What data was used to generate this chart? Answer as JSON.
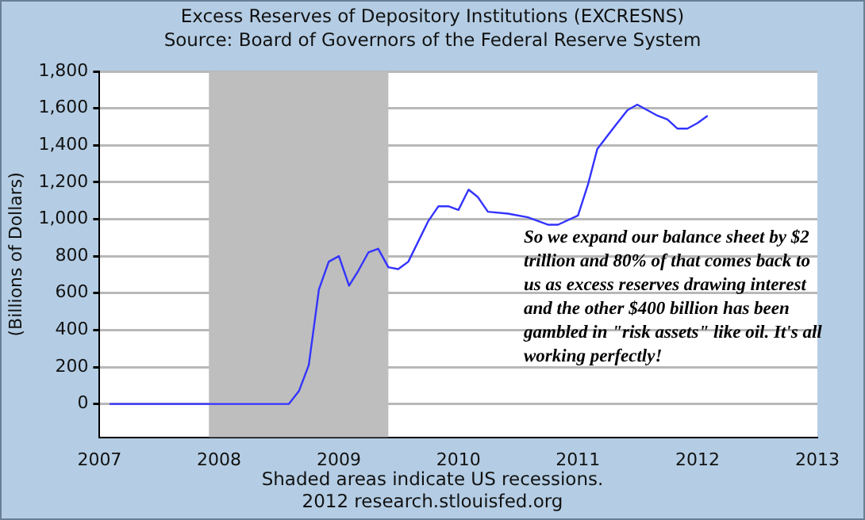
{
  "chart_data": {
    "type": "line",
    "title": "Excess Reserves of Depository Institutions (EXCRESNS)",
    "subtitle": "Source: Board of Governors of the Federal Reserve System",
    "ylabel": "(Billions of Dollars)",
    "annotations": [
      "So we expand our balance sheet by $2 trillion and 80% of that comes back to us as excess reserves drawing interest and the other $400 billion has been gambled in \"risk assets\" like oil. It's all working perfectly!",
      "Shaded areas indicate US recessions.",
      "2012 research.stlouisfed.org"
    ],
    "x": [
      "2007-02",
      "2007-06",
      "2007-10",
      "2008-02",
      "2008-06",
      "2008-08",
      "2008-09",
      "2008-10",
      "2008-11",
      "2008-12",
      "2009-01",
      "2009-02",
      "2009-03",
      "2009-04",
      "2009-05",
      "2009-06",
      "2009-07",
      "2009-08",
      "2009-10",
      "2009-11",
      "2009-12",
      "2010-01",
      "2010-02",
      "2010-03",
      "2010-04",
      "2010-06",
      "2010-08",
      "2010-10",
      "2010-11",
      "2011-01",
      "2011-02",
      "2011-03",
      "2011-05",
      "2011-06",
      "2011-07",
      "2011-09",
      "2011-10",
      "2011-11",
      "2011-12",
      "2012-01",
      "2012-02"
    ],
    "series": [
      {
        "color": "#3333ff",
        "values": [
          0,
          0,
          0,
          0,
          0,
          0,
          70,
          210,
          620,
          770,
          800,
          640,
          720,
          820,
          840,
          740,
          730,
          770,
          990,
          1070,
          1070,
          1050,
          1160,
          1120,
          1040,
          1030,
          1010,
          970,
          970,
          1020,
          1190,
          1380,
          1520,
          1590,
          1620,
          1560,
          1540,
          1490,
          1490,
          1520,
          1560
        ]
      }
    ],
    "xlim": [
      "2007",
      "2013"
    ],
    "xticks": [
      "2007",
      "2008",
      "2009",
      "2010",
      "2011",
      "2012",
      "2013"
    ],
    "ylim": [
      -180,
      1800
    ],
    "yticks": [
      0,
      200,
      400,
      600,
      800,
      {
        "value": 1000,
        "label": "1,000"
      },
      {
        "value": 1200,
        "label": "1,200"
      },
      {
        "value": 1400,
        "label": "1,400"
      },
      {
        "value": 1600,
        "label": "1,600"
      },
      {
        "value": 1800,
        "label": "1,800"
      }
    ],
    "bands": [
      {
        "axis": "x",
        "from": "2007-12",
        "to": "2009-06",
        "color": "#bebebe"
      }
    ],
    "grid": "y",
    "legend": false,
    "marker": "none",
    "line_style": "solid"
  }
}
